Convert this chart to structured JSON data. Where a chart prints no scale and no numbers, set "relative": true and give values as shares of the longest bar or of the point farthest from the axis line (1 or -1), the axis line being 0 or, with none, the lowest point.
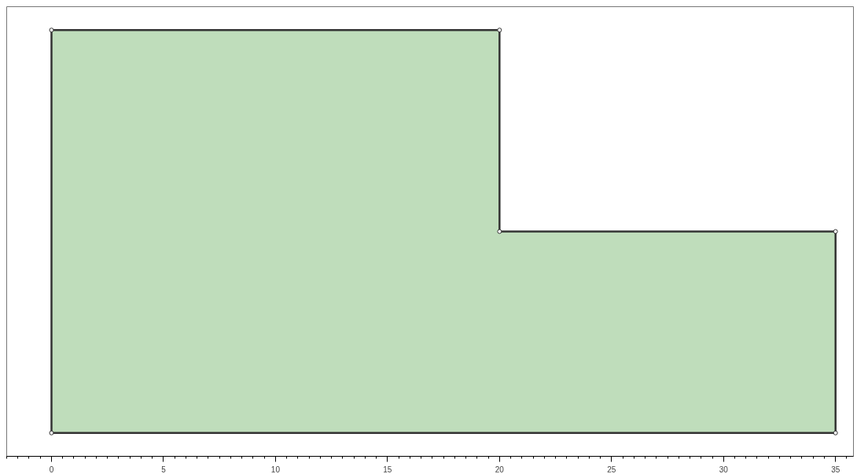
{
  "chart_data": {
    "type": "area",
    "relative": true,
    "x": [
      0,
      0,
      20,
      20,
      35,
      35
    ],
    "series": [
      {
        "color": "#bfddbb",
        "values": [
          0,
          1,
          1,
          0.5,
          0.5,
          0
        ]
      }
    ],
    "xlim": [
      -2,
      35.8
    ],
    "xticks": [
      0,
      5,
      10,
      15,
      20,
      25,
      30,
      35
    ],
    "grid": false,
    "marker": "circle"
  }
}
